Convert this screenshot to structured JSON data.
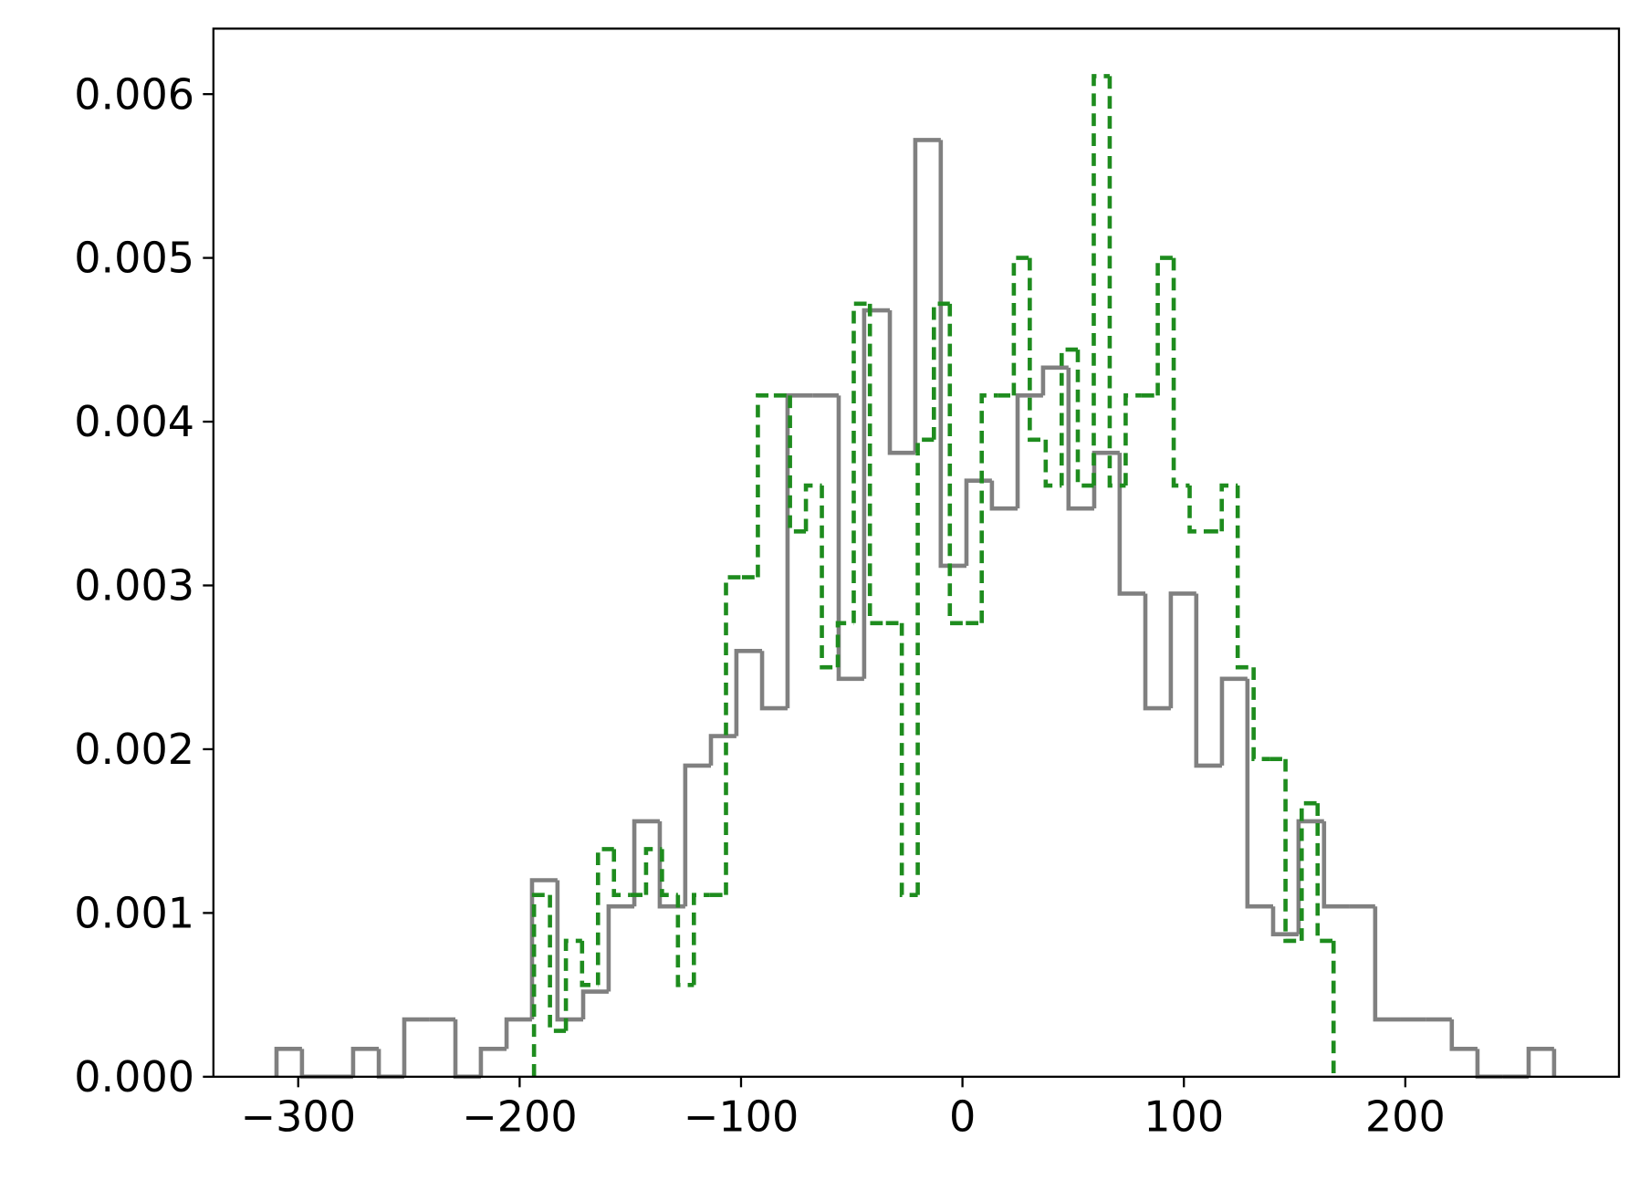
{
  "chart_data": {
    "type": "histogram",
    "xlim": [
      -338.3,
      296.5
    ],
    "ylim": [
      0,
      0.0064
    ],
    "xticks": [
      {
        "value": -300,
        "label": "−300"
      },
      {
        "value": -200,
        "label": "−200"
      },
      {
        "value": -100,
        "label": "−100"
      },
      0,
      100,
      200
    ],
    "yticks": [
      {
        "value": 0,
        "label": "0.000"
      },
      {
        "value": 0.001,
        "label": "0.001"
      },
      {
        "value": 0.002,
        "label": "0.002"
      },
      {
        "value": 0.003,
        "label": "0.003"
      },
      {
        "value": 0.004,
        "label": "0.004"
      },
      {
        "value": 0.005,
        "label": "0.005"
      },
      {
        "value": 0.006,
        "label": "0.006"
      }
    ],
    "series": [
      {
        "color": "#808080",
        "dashed": false,
        "bins": [
          -309.8,
          -298.3,
          -286.7,
          -275.2,
          -263.6,
          -252.1,
          -240.6,
          -229.0,
          -217.5,
          -205.9,
          -194.4,
          -182.9,
          -171.3,
          -159.8,
          -148.2,
          -136.7,
          -125.2,
          -113.6,
          -102.1,
          -90.5,
          -79.0,
          -67.5,
          -55.9,
          -44.4,
          -32.8,
          -21.3,
          -9.8,
          1.8,
          13.3,
          24.9,
          36.4,
          47.9,
          59.5,
          71.0,
          82.6,
          94.1,
          105.6,
          117.2,
          128.7,
          140.3,
          151.8,
          163.3,
          174.9,
          186.4,
          198.0,
          209.5,
          221.0,
          232.6,
          244.1,
          255.7,
          267.2
        ],
        "values": [
          0.00017,
          0,
          0,
          0.00017,
          0,
          0.00035,
          0.00035,
          0,
          0.00017,
          0.00035,
          0.0012,
          0.00035,
          0.00052,
          0.00104,
          0.00156,
          0.00104,
          0.0019,
          0.00208,
          0.0026,
          0.00225,
          0.00416,
          0.00416,
          0.00243,
          0.00468,
          0.00381,
          0.00572,
          0.00312,
          0.00364,
          0.00347,
          0.00416,
          0.00433,
          0.00347,
          0.00381,
          0.00295,
          0.00225,
          0.00295,
          0.0019,
          0.00243,
          0.00104,
          0.00087,
          0.00156,
          0.00104,
          0.00104,
          0.00035,
          0.00035,
          0.00035,
          0.00017,
          0,
          0,
          0.00017
        ]
      },
      {
        "color": "#1e8c1e",
        "dashed": true,
        "bins": [
          -193.5,
          -186.3,
          -179.1,
          -171.8,
          -164.6,
          -157.4,
          -150.2,
          -142.9,
          -135.7,
          -128.5,
          -121.3,
          -114.1,
          -106.8,
          -99.6,
          -92.4,
          -85.2,
          -77.9,
          -70.7,
          -63.5,
          -56.3,
          -49.1,
          -41.8,
          -34.6,
          -27.4,
          -20.2,
          -12.9,
          -5.7,
          1.5,
          8.7,
          15.9,
          23.2,
          30.4,
          37.6,
          44.8,
          52.1,
          59.3,
          66.5,
          73.7,
          80.9,
          88.2,
          95.4,
          102.6,
          109.8,
          117.1,
          124.3,
          131.5,
          138.7,
          145.9,
          153.2,
          160.4,
          167.6
        ],
        "values": [
          0.00111,
          0.00028,
          0.00083,
          0.00056,
          0.00139,
          0.00111,
          0.00111,
          0.00139,
          0.00111,
          0.00056,
          0.00111,
          0.00111,
          0.00305,
          0.00305,
          0.00416,
          0.00416,
          0.00333,
          0.00361,
          0.0025,
          0.00277,
          0.00472,
          0.00277,
          0.00277,
          0.00111,
          0.00389,
          0.00472,
          0.00277,
          0.00277,
          0.00416,
          0.00416,
          0.005,
          0.00389,
          0.00361,
          0.00444,
          0.00361,
          0.00611,
          0.00361,
          0.00416,
          0.00416,
          0.005,
          0.00361,
          0.00333,
          0.00333,
          0.00361,
          0.0025,
          0.00194,
          0.00194,
          0.00083,
          0.00167,
          0.00083
        ]
      }
    ]
  }
}
